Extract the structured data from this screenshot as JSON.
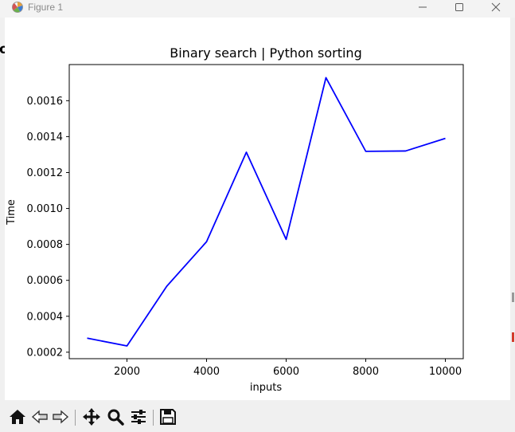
{
  "window": {
    "title": "Figure 1",
    "icon": "matplotlib-app-icon",
    "controls": [
      "minimize-icon",
      "maximize-icon",
      "close-icon"
    ]
  },
  "figure": {
    "left_edge_glyph": "o"
  },
  "chart_data": {
    "type": "line",
    "title": "Binary search | Python sorting",
    "xlabel": "inputs",
    "ylabel": "Time",
    "x": [
      1000,
      2000,
      3000,
      4000,
      5000,
      6000,
      7000,
      8000,
      9000,
      10000
    ],
    "series": [
      {
        "values": [
          0.000278,
          0.000235,
          0.000567,
          0.000815,
          0.001313,
          0.000828,
          0.001728,
          0.001318,
          0.00132,
          0.00139
        ],
        "color": "#0000ff"
      }
    ],
    "xlim": [
      550,
      10450
    ],
    "ylim": [
      0.000164,
      0.001801
    ],
    "xticks": [
      2000,
      4000,
      6000,
      8000,
      10000
    ],
    "xtick_labels": [
      "2000",
      "4000",
      "6000",
      "8000",
      "10000"
    ],
    "yticks": [
      0.0002,
      0.0004,
      0.0006,
      0.0008,
      0.001,
      0.0012,
      0.0014,
      0.0016
    ],
    "ytick_labels": [
      "0.0002",
      "0.0004",
      "0.0006",
      "0.0008",
      "0.0010",
      "0.0012",
      "0.0014",
      "0.0016"
    ],
    "grid": false,
    "legend": false
  },
  "toolbar": {
    "tools": [
      {
        "name": "home-icon"
      },
      {
        "name": "back-arrow-icon"
      },
      {
        "name": "forward-arrow-icon"
      },
      {
        "name": "pan-move-icon"
      },
      {
        "name": "zoom-magnifier-icon"
      },
      {
        "name": "configure-subplots-icon"
      },
      {
        "name": "save-floppy-icon"
      }
    ]
  }
}
